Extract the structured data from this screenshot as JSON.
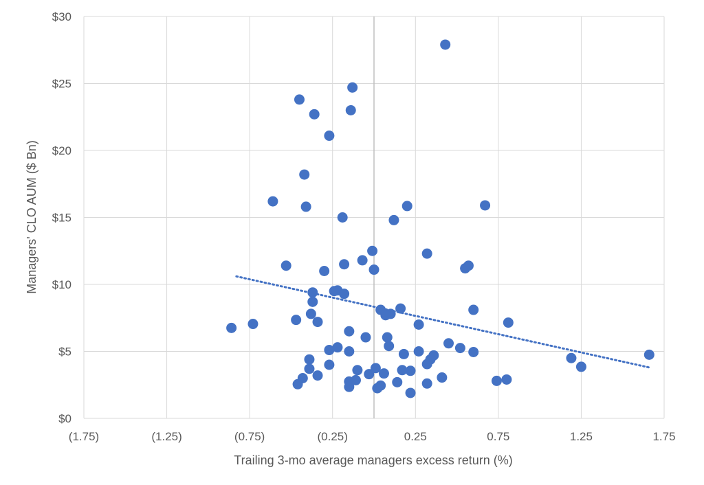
{
  "chart_data": {
    "type": "scatter",
    "title": "",
    "xlabel": "Trailing 3-mo average managers excess return (%)",
    "ylabel": "Managers' CLO AUM ($ Bn)",
    "xlim": [
      -1.75,
      1.75
    ],
    "ylim": [
      0,
      30
    ],
    "x_ticks": [
      -1.75,
      -1.25,
      -0.75,
      -0.25,
      0.25,
      0.75,
      1.25,
      1.75
    ],
    "x_tick_labels": [
      "(1.75)",
      "(1.25)",
      "(0.75)",
      "(0.25)",
      "0.25",
      "0.75",
      "1.25",
      "1.75"
    ],
    "y_ticks": [
      0,
      5,
      10,
      15,
      20,
      25,
      30
    ],
    "y_tick_labels": [
      "$0",
      "$5",
      "$10",
      "$15",
      "$20",
      "$25",
      "$30"
    ],
    "grid": true,
    "legend": "none",
    "marker_color": "#4472C4",
    "trendline": {
      "type": "linear",
      "style": "dotted",
      "color": "#4472C4",
      "x": [
        -0.83,
        1.66
      ],
      "y": [
        10.6,
        3.8
      ]
    },
    "points": [
      {
        "x": 0.43,
        "y": 27.9
      },
      {
        "x": -0.13,
        "y": 24.7
      },
      {
        "x": -0.45,
        "y": 23.8
      },
      {
        "x": -0.14,
        "y": 23.0
      },
      {
        "x": -0.36,
        "y": 22.7
      },
      {
        "x": -0.27,
        "y": 21.1
      },
      {
        "x": -0.42,
        "y": 18.2
      },
      {
        "x": -0.61,
        "y": 16.2
      },
      {
        "x": -0.41,
        "y": 15.8
      },
      {
        "x": 0.2,
        "y": 15.85
      },
      {
        "x": 0.67,
        "y": 15.9
      },
      {
        "x": -0.19,
        "y": 15.0
      },
      {
        "x": 0.12,
        "y": 14.8
      },
      {
        "x": -0.01,
        "y": 12.5
      },
      {
        "x": 0.32,
        "y": 12.3
      },
      {
        "x": -0.53,
        "y": 11.4
      },
      {
        "x": -0.18,
        "y": 11.5
      },
      {
        "x": -0.07,
        "y": 11.8
      },
      {
        "x": 0.0,
        "y": 11.1
      },
      {
        "x": 0.55,
        "y": 11.2
      },
      {
        "x": 0.57,
        "y": 11.4
      },
      {
        "x": -0.3,
        "y": 11.0
      },
      {
        "x": -0.37,
        "y": 9.4
      },
      {
        "x": -0.22,
        "y": 9.55
      },
      {
        "x": -0.24,
        "y": 9.5
      },
      {
        "x": -0.18,
        "y": 9.3
      },
      {
        "x": -0.37,
        "y": 8.7
      },
      {
        "x": 0.04,
        "y": 8.1
      },
      {
        "x": 0.16,
        "y": 8.2
      },
      {
        "x": 0.6,
        "y": 8.1
      },
      {
        "x": -0.38,
        "y": 7.8
      },
      {
        "x": 0.07,
        "y": 7.7
      },
      {
        "x": 0.1,
        "y": 7.8
      },
      {
        "x": -0.47,
        "y": 7.35
      },
      {
        "x": -0.34,
        "y": 7.2
      },
      {
        "x": -0.73,
        "y": 7.05
      },
      {
        "x": -0.86,
        "y": 6.75
      },
      {
        "x": 0.27,
        "y": 7.0
      },
      {
        "x": 0.81,
        "y": 7.15
      },
      {
        "x": -0.15,
        "y": 6.5
      },
      {
        "x": -0.05,
        "y": 6.05
      },
      {
        "x": 0.08,
        "y": 6.05
      },
      {
        "x": 0.09,
        "y": 5.4
      },
      {
        "x": 0.45,
        "y": 5.6
      },
      {
        "x": 0.52,
        "y": 5.25
      },
      {
        "x": -0.22,
        "y": 5.3
      },
      {
        "x": -0.27,
        "y": 5.1
      },
      {
        "x": -0.15,
        "y": 5.0
      },
      {
        "x": 0.27,
        "y": 5.0
      },
      {
        "x": 0.6,
        "y": 4.95
      },
      {
        "x": 0.18,
        "y": 4.8
      },
      {
        "x": 0.36,
        "y": 4.7
      },
      {
        "x": 1.19,
        "y": 4.5
      },
      {
        "x": 1.66,
        "y": 4.75
      },
      {
        "x": -0.39,
        "y": 4.4
      },
      {
        "x": 0.34,
        "y": 4.4
      },
      {
        "x": -0.27,
        "y": 4.0
      },
      {
        "x": 0.32,
        "y": 4.05
      },
      {
        "x": 1.25,
        "y": 3.85
      },
      {
        "x": -0.39,
        "y": 3.7
      },
      {
        "x": 0.01,
        "y": 3.75
      },
      {
        "x": -0.1,
        "y": 3.6
      },
      {
        "x": 0.17,
        "y": 3.6
      },
      {
        "x": 0.22,
        "y": 3.55
      },
      {
        "x": -0.34,
        "y": 3.2
      },
      {
        "x": -0.03,
        "y": 3.3
      },
      {
        "x": 0.06,
        "y": 3.35
      },
      {
        "x": -0.43,
        "y": 3.0
      },
      {
        "x": 0.41,
        "y": 3.05
      },
      {
        "x": -0.15,
        "y": 2.75
      },
      {
        "x": -0.11,
        "y": 2.85
      },
      {
        "x": 0.14,
        "y": 2.7
      },
      {
        "x": 0.32,
        "y": 2.6
      },
      {
        "x": 0.74,
        "y": 2.8
      },
      {
        "x": 0.8,
        "y": 2.9
      },
      {
        "x": -0.46,
        "y": 2.55
      },
      {
        "x": 0.04,
        "y": 2.45
      },
      {
        "x": 0.02,
        "y": 2.25
      },
      {
        "x": -0.15,
        "y": 2.35
      },
      {
        "x": 0.22,
        "y": 1.9
      }
    ]
  }
}
